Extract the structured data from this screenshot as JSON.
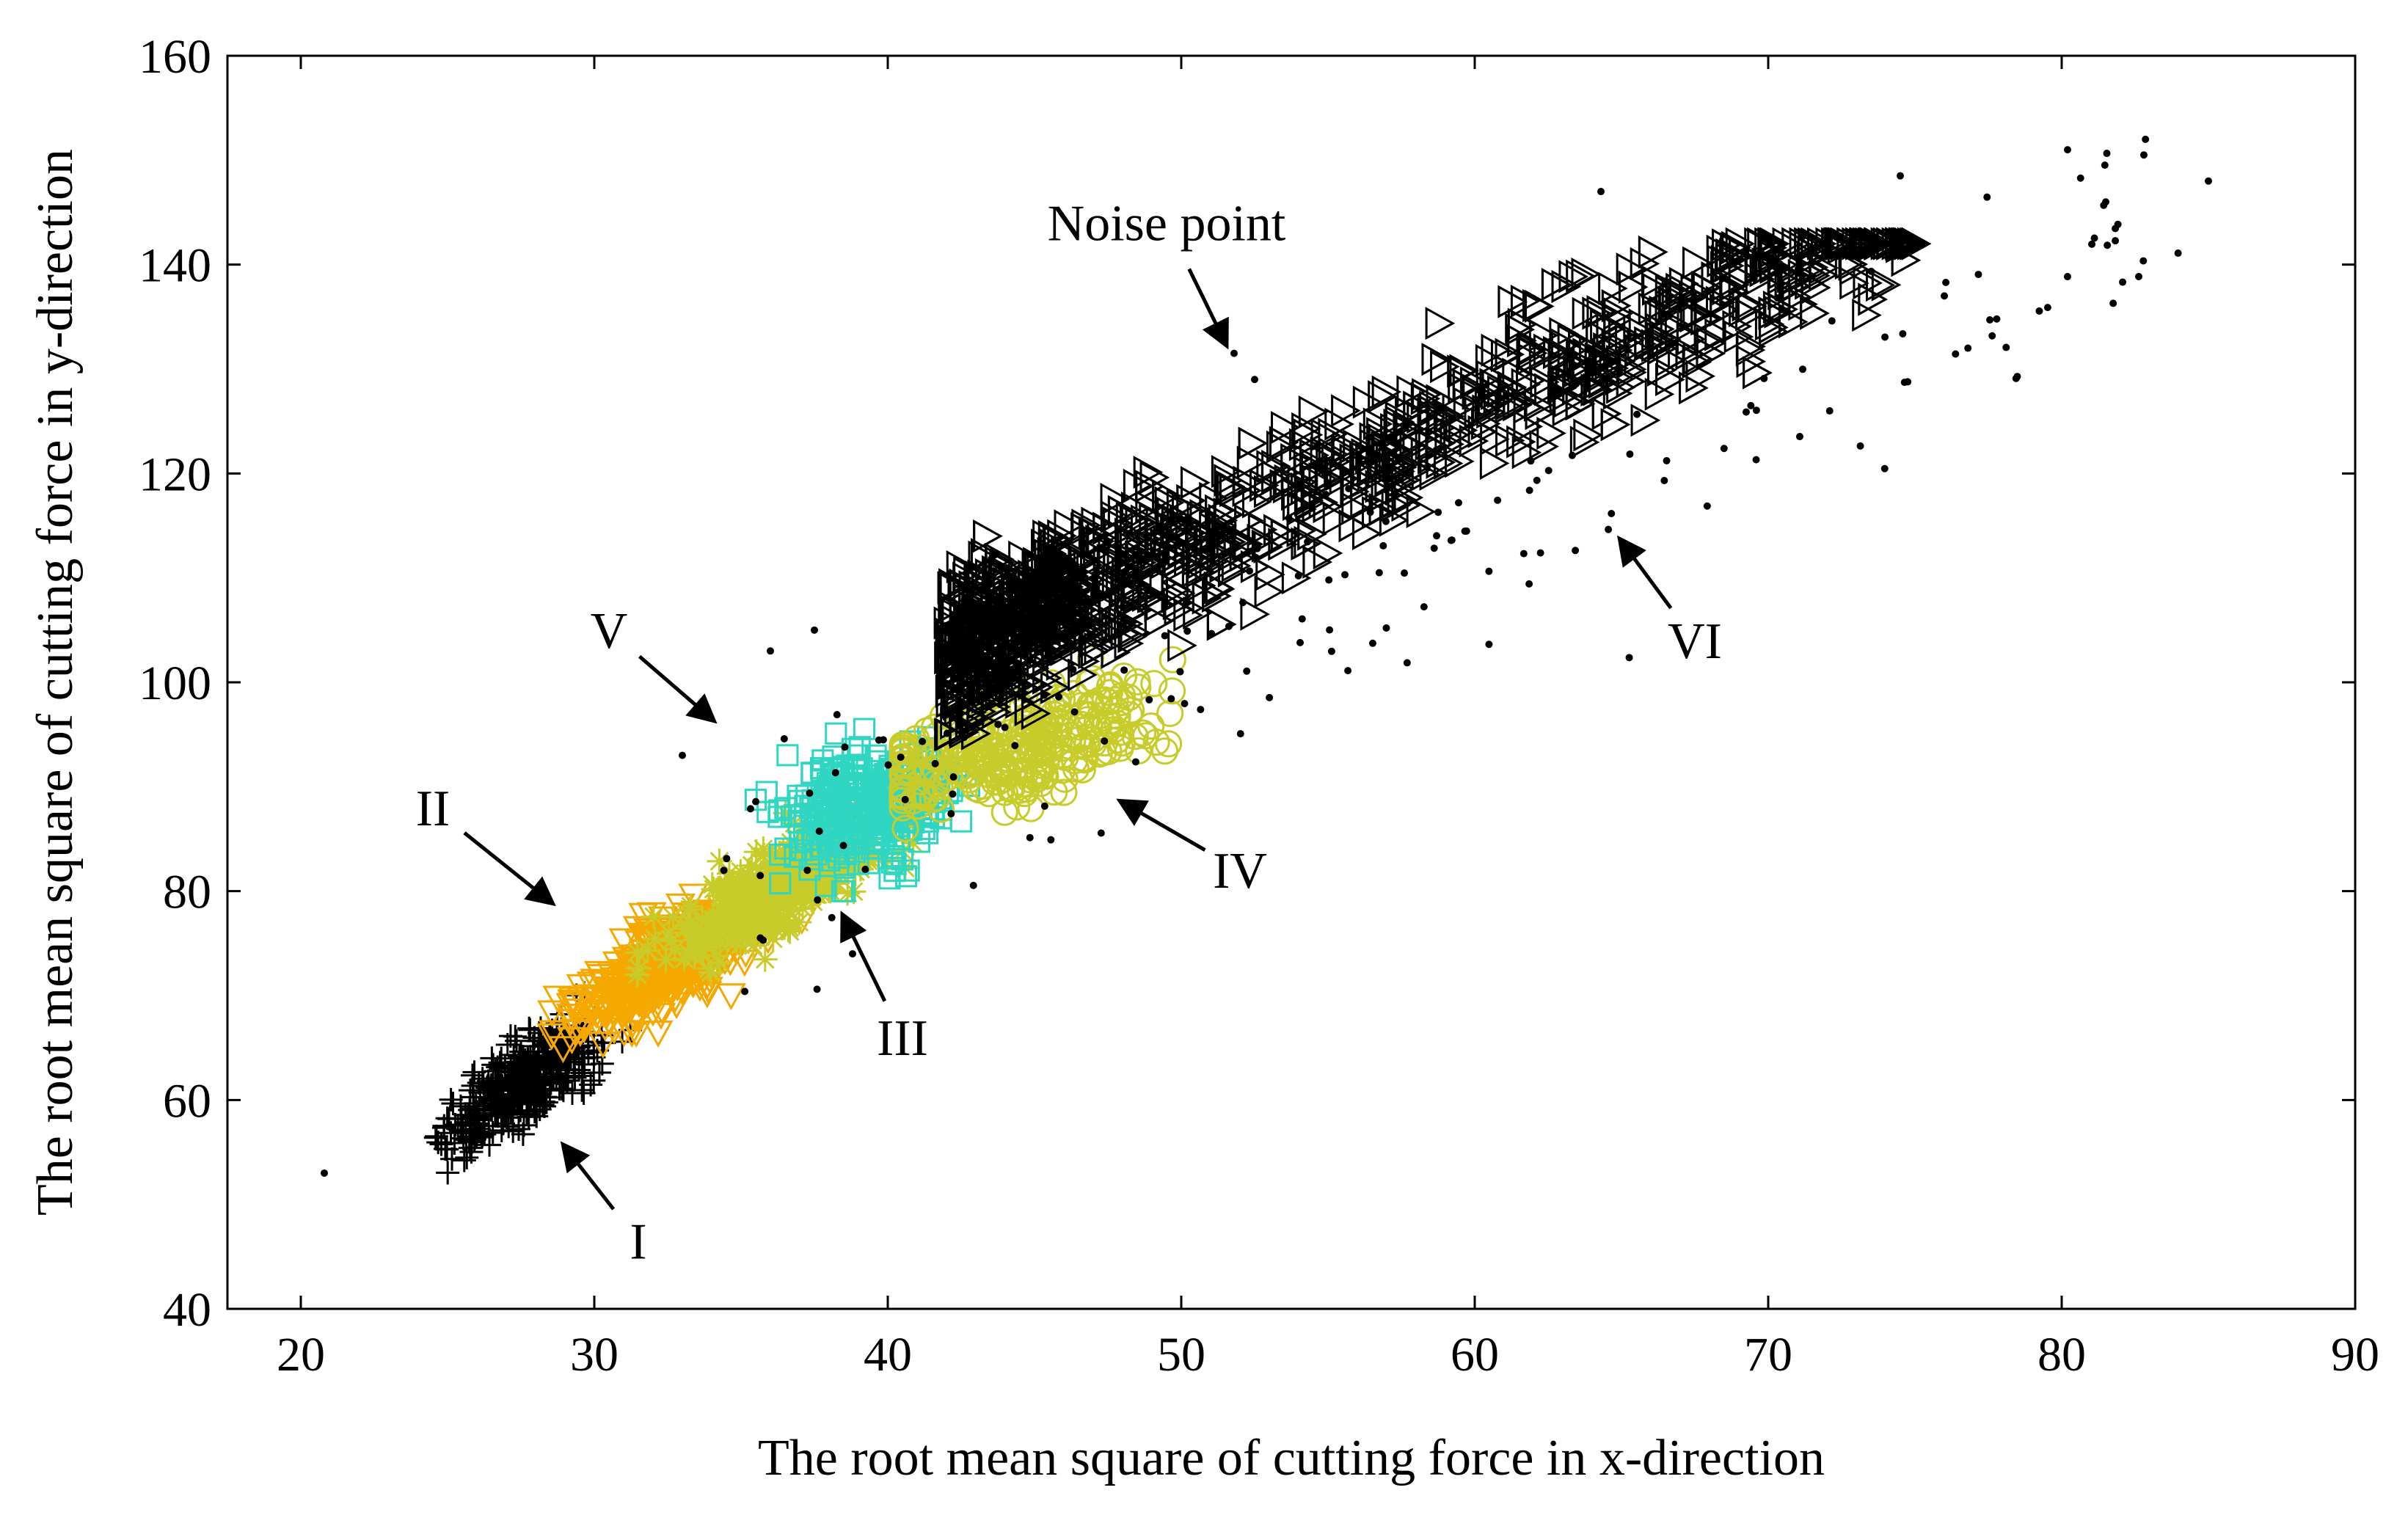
{
  "chart_data": {
    "type": "scatter",
    "title": "",
    "xlabel": "The root mean square of cutting force in x-direction",
    "ylabel": "The root mean square of cutting force in y-direction",
    "xlim": [
      17.5,
      90
    ],
    "ylim": [
      40,
      160
    ],
    "xticks": [
      20,
      30,
      40,
      50,
      60,
      70,
      80,
      90
    ],
    "yticks": [
      40,
      60,
      80,
      100,
      120,
      140,
      160
    ],
    "grid": false,
    "series": [
      {
        "name": "I",
        "marker": "plus",
        "color": "#000000",
        "count": 420,
        "centroid": [
          27.5,
          61.5
        ],
        "x_range": [
          23.0,
          31.5
        ],
        "y_range": [
          51.0,
          72.0
        ]
      },
      {
        "name": "II",
        "marker": "triangle-down",
        "color": "#F5A800",
        "count": 460,
        "centroid": [
          32.5,
          73.0
        ],
        "x_range": [
          28.0,
          37.5
        ],
        "y_range": [
          65.0,
          82.0
        ]
      },
      {
        "name": "III",
        "marker": "asterisk",
        "color": "#C8CC2A",
        "count": 380,
        "centroid": [
          36.5,
          80.5
        ],
        "x_range": [
          30.5,
          41.5
        ],
        "y_range": [
          72.0,
          92.0
        ]
      },
      {
        "name": "V",
        "marker": "square",
        "color": "#2FD6C2",
        "count": 320,
        "centroid": [
          39.5,
          88.0
        ],
        "x_range": [
          35.5,
          45.5
        ],
        "y_range": [
          80.0,
          97.0
        ]
      },
      {
        "name": "IV",
        "marker": "circle",
        "color": "#C8CC2A",
        "count": 300,
        "centroid": [
          44.5,
          94.0
        ],
        "x_range": [
          40.5,
          50.5
        ],
        "y_range": [
          86.0,
          105.0
        ]
      },
      {
        "name": "VI",
        "marker": "triangle-right",
        "color": "#000000",
        "count": 1500,
        "centroid": [
          53.0,
          110.0
        ],
        "x_range": [
          42.0,
          75.0
        ],
        "y_range": [
          95.0,
          142.0
        ]
      },
      {
        "name": "Noise point",
        "marker": "dot",
        "color": "#000000",
        "count": 170,
        "x_range": [
          20.8,
          85.0
        ],
        "y_range": [
          53.0,
          151.0
        ],
        "points": [
          [
            20.8,
            53.0
          ],
          [
            51.8,
            131.5
          ],
          [
            52.5,
            129.0
          ],
          [
            80.2,
            151.0
          ],
          [
            82.8,
            150.5
          ],
          [
            85.0,
            148.0
          ],
          [
            81.5,
            146.0
          ],
          [
            74.5,
            148.5
          ],
          [
            64.3,
            147.0
          ],
          [
            36.0,
            103.0
          ],
          [
            37.5,
            105.0
          ],
          [
            33.0,
            93.0
          ],
          [
            38.8,
            74.0
          ]
        ]
      }
    ],
    "annotations": [
      {
        "text": "Noise point",
        "label_at": [
          49.5,
          144.0
        ],
        "arrow_to": [
          51.5,
          132.5
        ]
      },
      {
        "text": "I",
        "label_at": [
          31.5,
          46.5
        ],
        "arrow_to": [
          29.0,
          55.5
        ]
      },
      {
        "text": "II",
        "label_at": [
          24.5,
          88.0
        ],
        "arrow_to": [
          28.5,
          79.0
        ]
      },
      {
        "text": "III",
        "label_at": [
          40.5,
          66.0
        ],
        "arrow_to": [
          38.5,
          77.5
        ]
      },
      {
        "text": "IV",
        "label_at": [
          52.0,
          82.0
        ],
        "arrow_to": [
          48.0,
          88.5
        ]
      },
      {
        "text": "V",
        "label_at": [
          30.5,
          105.0
        ],
        "arrow_to": [
          34.0,
          96.5
        ]
      },
      {
        "text": "VI",
        "label_at": [
          67.5,
          104.0
        ],
        "arrow_to": [
          65.0,
          113.5
        ]
      }
    ]
  }
}
